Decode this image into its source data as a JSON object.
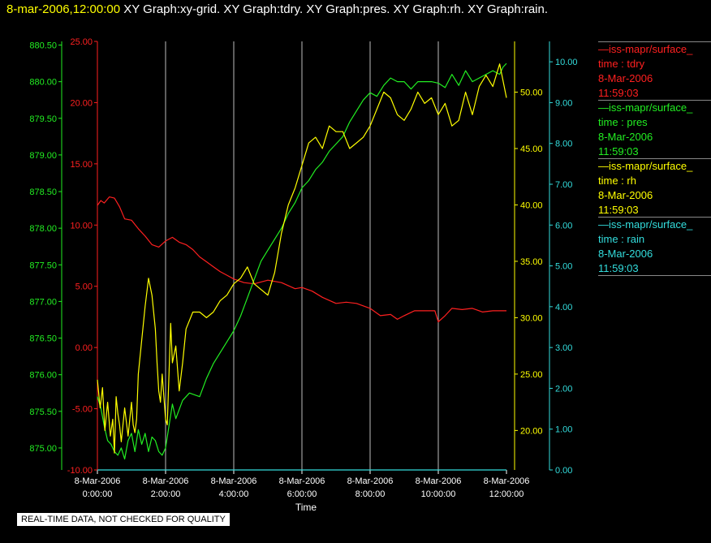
{
  "header": {
    "timestamp": "8-mar-2006,12:00:00",
    "graphs": "XY Graph:xy-grid.  XY Graph:tdry.  XY Graph:pres.  XY Graph:rh.  XY Graph:rain."
  },
  "colors": {
    "tdry": "#ff2020",
    "pres": "#22ee22",
    "rh": "#ffff00",
    "rain": "#33dddd",
    "grid": "#bbbbbb",
    "background": "#000000"
  },
  "legend": [
    {
      "source": "—iss-mapr/surface_",
      "variable": "time : tdry",
      "date": "8-Mar-2006",
      "time": "11:59:03",
      "color": "#ff2020"
    },
    {
      "source": "—iss-mapr/surface_",
      "variable": "time : pres",
      "date": "8-Mar-2006",
      "time": "11:59:03",
      "color": "#22ee22"
    },
    {
      "source": "—iss-mapr/surface_",
      "variable": "time : rh",
      "date": "8-Mar-2006",
      "time": "11:59:03",
      "color": "#ffff00"
    },
    {
      "source": "—iss-mapr/surface_",
      "variable": "time : rain",
      "date": "8-Mar-2006",
      "time": "11:59:03",
      "color": "#33dddd"
    }
  ],
  "notice": "REAL-TIME DATA, NOT CHECKED FOR QUALITY",
  "chart_data": {
    "type": "line",
    "xlabel": "Time",
    "x_ticks": [
      {
        "date": "8-Mar-2006",
        "time": "0:00:00",
        "hour": 0
      },
      {
        "date": "8-Mar-2006",
        "time": "2:00:00",
        "hour": 2
      },
      {
        "date": "8-Mar-2006",
        "time": "4:00:00",
        "hour": 4
      },
      {
        "date": "8-Mar-2006",
        "time": "6:00:00",
        "hour": 6
      },
      {
        "date": "8-Mar-2006",
        "time": "8:00:00",
        "hour": 8
      },
      {
        "date": "8-Mar-2006",
        "time": "10:00:00",
        "hour": 10
      },
      {
        "date": "8-Mar-2006",
        "time": "12:00:00",
        "hour": 12
      }
    ],
    "xlim": [
      0,
      12
    ],
    "grid": true,
    "axes": {
      "pres": {
        "range": [
          874.7,
          880.55
        ],
        "ticks": [
          "875.00",
          "875.50",
          "876.00",
          "876.50",
          "877.00",
          "877.50",
          "878.00",
          "878.50",
          "879.00",
          "879.50",
          "880.00",
          "880.50"
        ],
        "side": "left-outer"
      },
      "tdry": {
        "range": [
          -10,
          25
        ],
        "ticks": [
          "-10.00",
          "-5.00",
          "0.00",
          "5.00",
          "10.00",
          "15.00",
          "20.00",
          "25.00"
        ],
        "side": "left-inner"
      },
      "rh": {
        "range": [
          16.5,
          54.5
        ],
        "ticks": [
          "20.00",
          "25.00",
          "30.00",
          "35.00",
          "40.00",
          "45.00",
          "50.00"
        ],
        "side": "right-inner"
      },
      "rain": {
        "range": [
          0,
          10.5
        ],
        "ticks": [
          "0.00",
          "1.00",
          "2.00",
          "3.00",
          "4.00",
          "5.00",
          "6.00",
          "7.00",
          "8.00",
          "9.00",
          "10.00"
        ],
        "side": "right-outer"
      }
    },
    "series": [
      {
        "name": "tdry",
        "x": [
          0,
          0.1,
          0.2,
          0.35,
          0.5,
          0.65,
          0.8,
          1,
          1.2,
          1.4,
          1.6,
          1.8,
          2,
          2.2,
          2.4,
          2.6,
          2.8,
          3,
          3.2,
          3.4,
          3.6,
          3.8,
          4,
          4.3,
          4.6,
          5,
          5.4,
          5.8,
          6,
          6.3,
          6.6,
          7,
          7.3,
          7.6,
          8,
          8.3,
          8.6,
          8.8,
          9,
          9.3,
          9.6,
          9.9,
          10,
          10.2,
          10.4,
          10.7,
          11,
          11.3,
          11.6,
          12
        ],
        "values": [
          11.6,
          12,
          11.8,
          12.3,
          12.2,
          11.5,
          10.5,
          10.4,
          9.7,
          9.1,
          8.4,
          8.2,
          8.7,
          9.0,
          8.6,
          8.4,
          8.0,
          7.4,
          7.0,
          6.6,
          6.2,
          5.9,
          5.6,
          5.3,
          5.2,
          5.5,
          5.3,
          4.8,
          4.9,
          4.6,
          4.1,
          3.6,
          3.7,
          3.6,
          3.2,
          2.6,
          2.7,
          2.3,
          2.6,
          3.0,
          3.0,
          3.0,
          2.1,
          2.6,
          3.2,
          3.1,
          3.2,
          2.9,
          3.0,
          3.0
        ]
      },
      {
        "name": "pres",
        "x": [
          0,
          0.1,
          0.2,
          0.3,
          0.4,
          0.5,
          0.6,
          0.7,
          0.8,
          0.9,
          1,
          1.1,
          1.2,
          1.3,
          1.4,
          1.5,
          1.6,
          1.7,
          1.8,
          1.9,
          2,
          2.1,
          2.2,
          2.3,
          2.5,
          2.7,
          3,
          3.2,
          3.4,
          3.6,
          3.8,
          4,
          4.2,
          4.4,
          4.6,
          4.8,
          5,
          5.2,
          5.4,
          5.6,
          5.8,
          6,
          6.2,
          6.4,
          6.6,
          6.8,
          7,
          7.2,
          7.4,
          7.6,
          7.8,
          8,
          8.2,
          8.4,
          8.6,
          8.8,
          9,
          9.2,
          9.4,
          9.6,
          9.8,
          10,
          10.2,
          10.4,
          10.6,
          10.8,
          11,
          11.2,
          11.4,
          11.6,
          11.8,
          11.9,
          12
        ],
        "values": [
          875.7,
          875.55,
          875.3,
          875.1,
          875.05,
          874.95,
          874.9,
          875.0,
          874.85,
          875.1,
          875.2,
          874.95,
          875.25,
          875.05,
          875.2,
          874.95,
          875.15,
          875.1,
          874.95,
          874.9,
          875.0,
          875.3,
          875.6,
          875.4,
          875.65,
          875.75,
          875.7,
          875.95,
          876.15,
          876.3,
          876.45,
          876.6,
          876.8,
          877.05,
          877.3,
          877.55,
          877.7,
          877.85,
          878.0,
          878.2,
          878.35,
          878.55,
          878.65,
          878.8,
          878.9,
          879.05,
          879.15,
          879.25,
          879.45,
          879.6,
          879.75,
          879.85,
          879.8,
          879.95,
          880.05,
          880.0,
          880.0,
          879.9,
          880.0,
          880.0,
          880.0,
          879.98,
          879.92,
          880.1,
          879.95,
          880.15,
          880.0,
          880.05,
          880.1,
          880.15,
          880.1,
          880.2,
          880.25
        ]
      },
      {
        "name": "rh",
        "x": [
          0,
          0.08,
          0.15,
          0.22,
          0.3,
          0.38,
          0.45,
          0.5,
          0.55,
          0.6,
          0.65,
          0.7,
          0.8,
          0.9,
          1,
          1.05,
          1.1,
          1.15,
          1.2,
          1.3,
          1.4,
          1.5,
          1.6,
          1.7,
          1.75,
          1.8,
          1.85,
          1.9,
          1.95,
          2,
          2.05,
          2.1,
          2.15,
          2.2,
          2.3,
          2.4,
          2.5,
          2.6,
          2.8,
          3,
          3.2,
          3.4,
          3.6,
          3.8,
          4,
          4.2,
          4.4,
          4.6,
          4.8,
          5,
          5.2,
          5.4,
          5.6,
          5.8,
          6,
          6.2,
          6.4,
          6.6,
          6.8,
          7,
          7.2,
          7.4,
          7.6,
          7.8,
          8,
          8.2,
          8.4,
          8.6,
          8.8,
          9,
          9.2,
          9.4,
          9.6,
          9.8,
          10,
          10.2,
          10.4,
          10.6,
          10.8,
          11,
          11.2,
          11.4,
          11.6,
          11.8,
          12
        ],
        "values": [
          24.5,
          22.0,
          23.8,
          20.0,
          22.5,
          19.5,
          21.0,
          18.0,
          23.0,
          21.5,
          20.5,
          19.0,
          22.0,
          19.5,
          22.5,
          20.5,
          19.8,
          21.0,
          25.0,
          28.0,
          31.0,
          33.5,
          32.0,
          29.0,
          26.0,
          23.5,
          22.5,
          25.0,
          23.0,
          21.0,
          20.5,
          25.0,
          29.5,
          26.0,
          27.5,
          23.5,
          26.0,
          29.0,
          30.5,
          30.5,
          30.0,
          30.5,
          31.5,
          32.0,
          33.0,
          33.5,
          34.5,
          33.0,
          32.5,
          32.0,
          34.0,
          37.5,
          40.0,
          41.5,
          43.5,
          45.5,
          46.0,
          45.0,
          47.0,
          46.5,
          46.5,
          45.0,
          45.5,
          46.0,
          47.0,
          48.5,
          50.0,
          49.5,
          48.0,
          47.5,
          48.5,
          50.0,
          49.0,
          49.5,
          48.0,
          49.0,
          47.0,
          47.5,
          50.0,
          48.0,
          50.5,
          51.5,
          50.5,
          52.5,
          49.5
        ]
      },
      {
        "name": "rain",
        "x": [
          0,
          12
        ],
        "values": [
          0.0,
          0.0
        ]
      }
    ]
  }
}
